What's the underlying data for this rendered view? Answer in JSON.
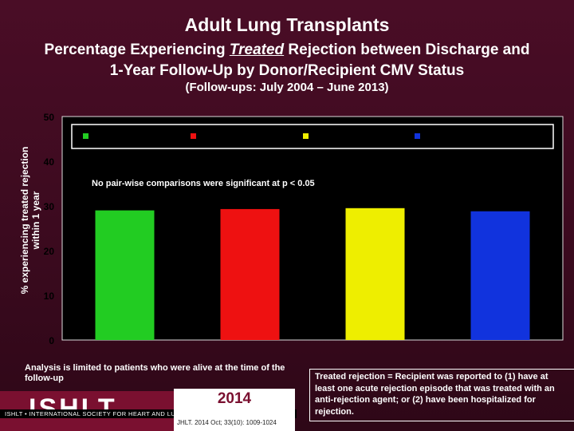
{
  "header": {
    "title": "Adult Lung Transplants",
    "subtitle_part1": "Percentage Experiencing ",
    "subtitle_emph": "Treated",
    "subtitle_part2": " Rejection between Discharge and",
    "subtitle_line2": "1-Year Follow-Up by Donor/Recipient CMV Status",
    "period": "(Follow-ups: July 2004 – June 2013)"
  },
  "chart_data": {
    "type": "bar",
    "categories": [
      "",
      "",
      "",
      ""
    ],
    "values": [
      29,
      29.3,
      29.5,
      28.8
    ],
    "colors": [
      "#22cc22",
      "#ee1111",
      "#eeee00",
      "#1133dd"
    ],
    "ylabel": "% experiencing treated rejection within 1 year",
    "ylim": [
      0,
      50
    ],
    "yticks": [
      0,
      10,
      20,
      30,
      40,
      50
    ],
    "annotation": "No pair-wise comparisons were significant at p < 0.05",
    "legend": {
      "placement": "top",
      "labels": [
        "",
        "",
        "",
        ""
      ]
    },
    "grid": false
  },
  "notes": {
    "left": "Analysis is limited to patients who were alive at the time of the follow-up",
    "right": "Treated rejection = Recipient was reported to (1) have at least one acute rejection episode that was treated with an anti-rejection agent; or (2) have been hospitalized for rejection."
  },
  "footer": {
    "logo": "ISHLT",
    "society": "ISHLT • INTERNATIONAL SOCIETY FOR HEART AND LUNG TRANSPLANTATION",
    "year": "2014",
    "citation": "JHLT. 2014 Oct; 33(10): 1009-1024"
  }
}
